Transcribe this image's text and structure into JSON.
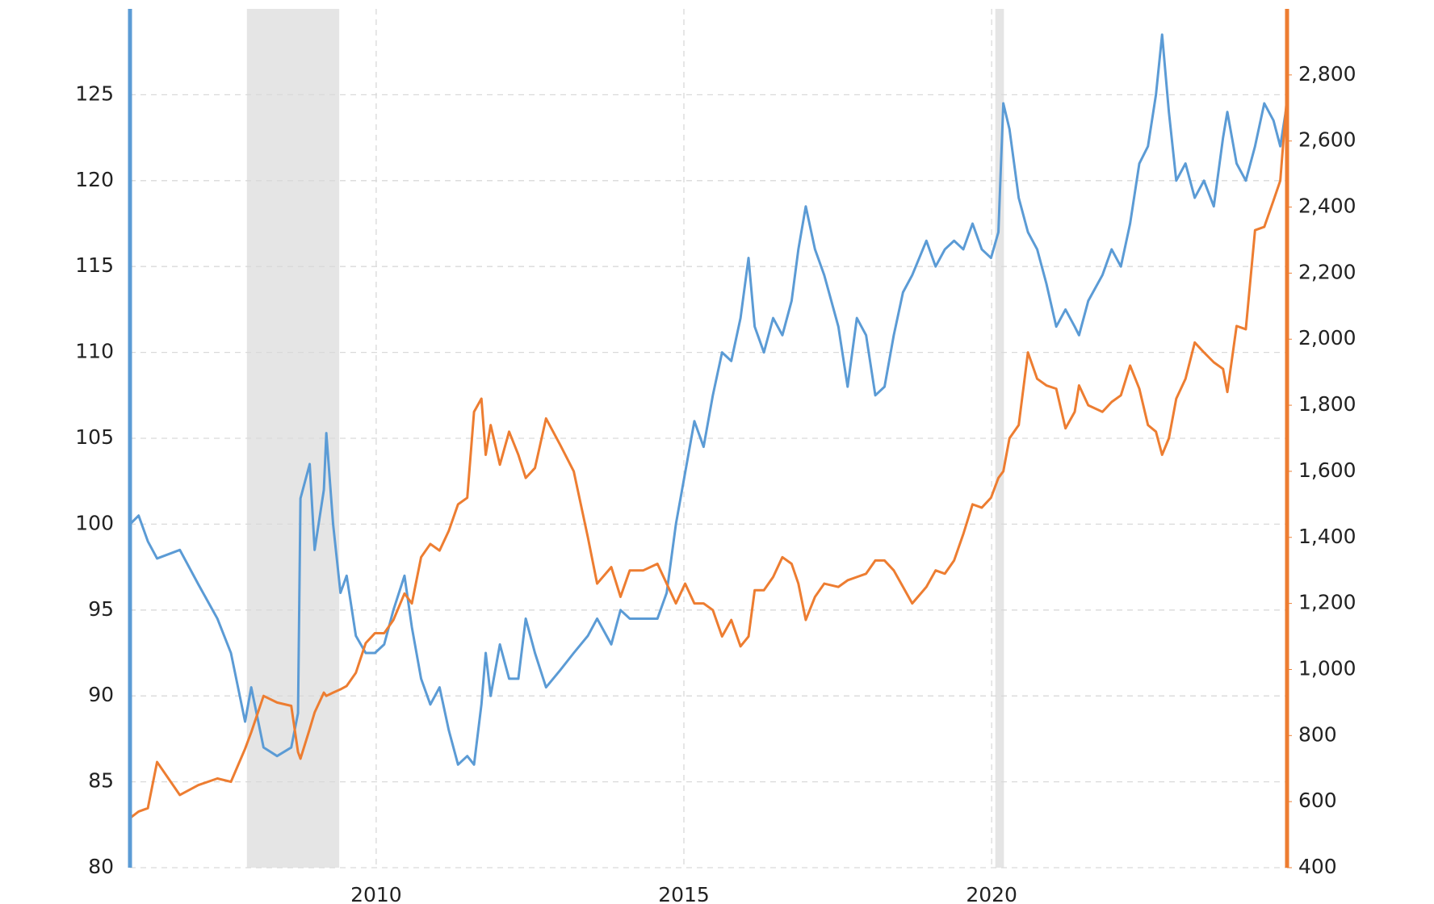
{
  "chart_data": {
    "type": "line",
    "x": [
      2006.0,
      2006.14,
      2006.29,
      2006.44,
      2006.81,
      2007.11,
      2007.42,
      2007.64,
      2007.87,
      2007.97,
      2008.17,
      2008.39,
      2008.62,
      2008.73,
      2008.77,
      2008.92,
      2009.0,
      2009.15,
      2009.19,
      2009.3,
      2009.42,
      2009.52,
      2009.67,
      2009.83,
      2009.98,
      2010.13,
      2010.28,
      2010.46,
      2010.58,
      2010.73,
      2010.88,
      2011.03,
      2011.18,
      2011.33,
      2011.48,
      2011.59,
      2011.71,
      2011.78,
      2011.86,
      2012.01,
      2012.16,
      2012.31,
      2012.43,
      2012.58,
      2012.76,
      2012.99,
      2013.21,
      2013.44,
      2013.59,
      2013.82,
      2013.97,
      2014.12,
      2014.34,
      2014.57,
      2014.72,
      2014.87,
      2015.02,
      2015.17,
      2015.32,
      2015.47,
      2015.62,
      2015.77,
      2015.92,
      2016.05,
      2016.15,
      2016.3,
      2016.45,
      2016.6,
      2016.75,
      2016.86,
      2016.98,
      2017.13,
      2017.28,
      2017.51,
      2017.66,
      2017.81,
      2017.96,
      2018.11,
      2018.26,
      2018.41,
      2018.56,
      2018.71,
      2018.94,
      2019.09,
      2019.24,
      2019.39,
      2019.54,
      2019.69,
      2019.84,
      2019.99,
      2020.11,
      2020.19,
      2020.29,
      2020.44,
      2020.59,
      2020.74,
      2020.89,
      2021.05,
      2021.2,
      2021.35,
      2021.42,
      2021.57,
      2021.8,
      2021.95,
      2022.1,
      2022.25,
      2022.4,
      2022.54,
      2022.67,
      2022.77,
      2022.88,
      2023.0,
      2023.15,
      2023.3,
      2023.45,
      2023.61,
      2023.76,
      2023.83,
      2023.98,
      2024.13,
      2024.28,
      2024.43,
      2024.58,
      2024.69,
      2024.8
    ],
    "series": [
      {
        "color": "#5b9bd5",
        "axis": "y",
        "values": [
          100,
          100.5,
          99,
          98,
          98.5,
          96.5,
          94.5,
          92.5,
          88.5,
          90.5,
          87,
          86.5,
          87,
          89,
          101.5,
          103.5,
          98.5,
          102,
          105.3,
          100,
          96,
          97,
          93.5,
          92.5,
          92.5,
          93,
          95,
          97,
          94,
          91,
          89.5,
          90.5,
          88,
          86,
          86.5,
          86,
          89.5,
          92.5,
          90,
          93,
          91,
          91,
          94.5,
          92.5,
          90.5,
          91.5,
          92.5,
          93.5,
          94.5,
          93,
          95,
          94.5,
          94.5,
          94.5,
          96,
          100,
          103,
          106,
          104.5,
          107.5,
          110,
          109.5,
          112,
          115.5,
          111.5,
          110,
          112,
          111,
          113,
          116,
          118.5,
          116,
          114.5,
          111.5,
          108,
          112,
          111,
          107.5,
          108,
          111,
          113.5,
          114.5,
          116.5,
          115,
          116,
          116.5,
          116,
          117.5,
          116,
          115.5,
          117,
          124.5,
          123,
          119,
          117,
          116,
          114,
          111.5,
          112.5,
          111.5,
          111,
          113,
          114.5,
          116,
          115,
          117.5,
          121,
          122,
          125,
          128.5,
          124,
          120,
          121,
          119,
          120,
          118.5,
          122.5,
          124,
          121,
          120,
          122,
          124.5,
          123.5,
          122,
          124.5
        ]
      },
      {
        "color": "#ed7d31",
        "axis": "y2",
        "values": [
          550,
          570,
          580,
          720,
          620,
          650,
          670,
          660,
          760,
          810,
          920,
          900,
          890,
          750,
          730,
          820,
          870,
          930,
          920,
          930,
          940,
          950,
          990,
          1080,
          1110,
          1110,
          1150,
          1230,
          1200,
          1340,
          1380,
          1360,
          1420,
          1500,
          1520,
          1780,
          1820,
          1650,
          1740,
          1620,
          1720,
          1650,
          1580,
          1610,
          1760,
          1680,
          1600,
          1400,
          1260,
          1310,
          1220,
          1300,
          1300,
          1320,
          1260,
          1200,
          1260,
          1200,
          1200,
          1180,
          1100,
          1150,
          1070,
          1100,
          1240,
          1240,
          1280,
          1340,
          1320,
          1260,
          1150,
          1220,
          1260,
          1250,
          1270,
          1280,
          1290,
          1330,
          1330,
          1300,
          1250,
          1200,
          1250,
          1300,
          1290,
          1330,
          1410,
          1500,
          1490,
          1520,
          1580,
          1600,
          1700,
          1740,
          1960,
          1880,
          1860,
          1850,
          1730,
          1780,
          1860,
          1800,
          1780,
          1810,
          1830,
          1920,
          1850,
          1740,
          1720,
          1650,
          1700,
          1820,
          1880,
          1990,
          1960,
          1930,
          1910,
          1840,
          2040,
          2030,
          2330,
          2340,
          2420,
          2480,
          2740
        ]
      }
    ],
    "xlim": [
      2006.0,
      2024.8
    ],
    "xticks": [
      2010,
      2015,
      2020
    ],
    "ylim": [
      80,
      130
    ],
    "yticks": [
      80,
      85,
      90,
      95,
      100,
      105,
      110,
      115,
      120,
      125
    ],
    "y2lim": [
      400,
      3000
    ],
    "y2ticks": [
      400,
      600,
      800,
      {
        "value": 1000,
        "label": "1,000"
      },
      {
        "value": 1200,
        "label": "1,200"
      },
      {
        "value": 1400,
        "label": "1,400"
      },
      {
        "value": 1600,
        "label": "1,600"
      },
      {
        "value": 1800,
        "label": "1,800"
      },
      {
        "value": 2000,
        "label": "2,000"
      },
      {
        "value": 2200,
        "label": "2,200"
      },
      {
        "value": 2400,
        "label": "2,400"
      },
      {
        "value": 2600,
        "label": "2,600"
      },
      {
        "value": 2800,
        "label": "2,800"
      }
    ],
    "shaded": [
      [
        2007.9,
        2009.4
      ],
      [
        2020.06,
        2020.2
      ]
    ],
    "grid": true
  }
}
